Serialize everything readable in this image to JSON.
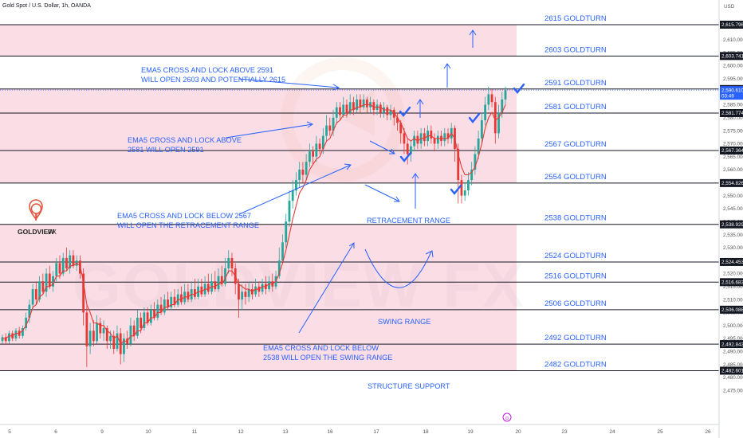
{
  "header": {
    "symbol": "Gold Spot / U.S. Dollar, 1h, OANDA",
    "currency": "USD"
  },
  "logo": {
    "name": "GOLDVIEW",
    "suffix": "FX"
  },
  "watermark": "GOLDVIEW FX",
  "colors": {
    "up": "#26a69a",
    "down": "#e53935",
    "band": "#fbdde6",
    "blue": "#2962ff",
    "ema": "#e53935"
  },
  "chart_data": {
    "type": "candlestick",
    "ylim": [
      2472,
      2622
    ],
    "x_ticks": [
      "5",
      "6",
      "9",
      "10",
      "11",
      "12",
      "13",
      "16",
      "17",
      "18",
      "19",
      "20",
      "23",
      "24",
      "25",
      "26"
    ],
    "y_ticks": [
      "2,610.000",
      "2,605.000",
      "2,600.000",
      "2,595.000",
      "2,585.000",
      "2,580.000",
      "2,575.000",
      "2,570.000",
      "2,565.000",
      "2,560.000",
      "2,555.000",
      "2,550.000",
      "2,545.000",
      "2,540.000",
      "2,535.000",
      "2,530.000",
      "2,525.000",
      "2,520.000",
      "2,515.000",
      "2,510.000",
      "2,505.000",
      "2,500.000",
      "2,495.000",
      "2,490.000",
      "2,485.000",
      "2,480.000",
      "2,475.000"
    ],
    "levels": [
      {
        "value": 2615.796,
        "tag": "2,615.796",
        "label": "2615 GOLDTURN"
      },
      {
        "value": 2603.741,
        "tag": "2,603.741",
        "label": "2603 GOLDTURN"
      },
      {
        "value": 2591.027,
        "tag": "2,591.027",
        "label": "2591 GOLDTURN"
      },
      {
        "value": 2581.774,
        "tag": "2,581.774",
        "label": "2581 GOLDTURN"
      },
      {
        "value": 2567.364,
        "tag": "2,567.364",
        "label": "2567 GOLDTURN"
      },
      {
        "value": 2554.826,
        "tag": "2,554.826",
        "label": "2554 GOLDTURN"
      },
      {
        "value": 2538.929,
        "tag": "2,538.929",
        "label": "2538 GOLDTURN"
      },
      {
        "value": 2524.453,
        "tag": "2,524.453",
        "label": "2524 GOLDTURN"
      },
      {
        "value": 2516.683,
        "tag": "2,516.683",
        "label": "2516 GOLDTURN"
      },
      {
        "value": 2506.088,
        "tag": "2,506.088",
        "label": "2506 GOLDTURN"
      },
      {
        "value": 2492.843,
        "tag": "2,492.843",
        "label": "2492 GOLDTURN"
      },
      {
        "value": 2482.601,
        "tag": "2,482.601",
        "label": "2482 GOLDTURN"
      }
    ],
    "bands": [
      [
        2603.741,
        2615.796
      ],
      [
        2554.826,
        2591.027
      ],
      [
        2482.601,
        2538.929
      ]
    ],
    "current_price": {
      "value": 2590.61,
      "tag": "2,590.610",
      "countdown": "03:49"
    },
    "annotations": [
      {
        "lines": [
          "EMA5 CROSS AND LOCK ABOVE 2591",
          "WILL OPEN 2603 AND POTENTIALLY 2615"
        ]
      },
      {
        "lines": [
          "EMA5 CROSS AND LOCK ABOVE",
          "2581 WILL OPEN 2591"
        ]
      },
      {
        "lines": [
          "EMA5 CROSS AND LOCK BELOW 2567",
          "WILL OPEN THE RETRACEMENT RANGE"
        ]
      },
      {
        "lines": [
          "EMA5 CROSS AND LOCK BELOW",
          "2538 WILL OPEN THE SWING RANGE"
        ]
      }
    ],
    "range_labels": [
      "RETRACEMENT RANGE",
      "SWING RANGE",
      "STRUCTURE SUPPORT"
    ],
    "candles": [
      [
        2494,
        2495.5,
        2496.5,
        2493
      ],
      [
        2495.5,
        2494,
        2497,
        2492.5
      ],
      [
        2494,
        2497,
        2498,
        2493
      ],
      [
        2497,
        2495,
        2498,
        2494
      ],
      [
        2495,
        2498,
        2499,
        2494
      ],
      [
        2498,
        2496,
        2499.5,
        2495
      ],
      [
        2496,
        2499,
        2500,
        2495
      ],
      [
        2499,
        2503,
        2505,
        2498
      ],
      [
        2503,
        2508,
        2510,
        2501
      ],
      [
        2508,
        2514,
        2516,
        2506
      ],
      [
        2514,
        2510,
        2517,
        2508
      ],
      [
        2510,
        2517,
        2519,
        2509
      ],
      [
        2517,
        2513,
        2520,
        2512
      ],
      [
        2513,
        2520,
        2522,
        2511
      ],
      [
        2520,
        2515,
        2523,
        2514
      ],
      [
        2515,
        2519,
        2521,
        2513
      ],
      [
        2519,
        2524,
        2526,
        2517
      ],
      [
        2524,
        2520,
        2527,
        2518
      ],
      [
        2520,
        2526,
        2528,
        2519
      ],
      [
        2526,
        2522,
        2530,
        2521
      ],
      [
        2522,
        2527,
        2529,
        2520
      ],
      [
        2527,
        2523,
        2529,
        2522
      ],
      [
        2523,
        2525,
        2527,
        2521
      ],
      [
        2525,
        2520,
        2527,
        2518
      ],
      [
        2520,
        2505,
        2522,
        2500
      ],
      [
        2505,
        2492,
        2508,
        2484
      ],
      [
        2492,
        2498,
        2501,
        2489
      ],
      [
        2498,
        2494,
        2502,
        2492
      ],
      [
        2494,
        2501,
        2504,
        2493
      ],
      [
        2501,
        2497,
        2503,
        2495
      ],
      [
        2497,
        2499,
        2502,
        2494
      ],
      [
        2499,
        2494,
        2500,
        2491
      ],
      [
        2494,
        2496,
        2498,
        2491
      ],
      [
        2496,
        2491,
        2498,
        2489
      ],
      [
        2491,
        2497,
        2500,
        2490
      ],
      [
        2497,
        2489,
        2499,
        2485
      ],
      [
        2489,
        2495,
        2497,
        2486
      ],
      [
        2495,
        2493,
        2498,
        2491
      ],
      [
        2493,
        2500,
        2503,
        2492
      ],
      [
        2500,
        2496,
        2502,
        2494
      ],
      [
        2496,
        2503,
        2506,
        2495
      ],
      [
        2503,
        2499,
        2505,
        2497
      ],
      [
        2499,
        2505,
        2507,
        2498
      ],
      [
        2505,
        2501,
        2507,
        2500
      ],
      [
        2501,
        2506,
        2508,
        2500
      ],
      [
        2506,
        2503,
        2509,
        2502
      ],
      [
        2503,
        2508,
        2510,
        2502
      ],
      [
        2508,
        2505,
        2511,
        2504
      ],
      [
        2505,
        2510,
        2512,
        2504
      ],
      [
        2510,
        2507,
        2513,
        2506
      ],
      [
        2507,
        2511,
        2513,
        2506
      ],
      [
        2511,
        2508,
        2514,
        2507
      ],
      [
        2508,
        2512,
        2514,
        2507
      ],
      [
        2512,
        2509,
        2515,
        2508
      ],
      [
        2509,
        2513,
        2516,
        2508
      ],
      [
        2513,
        2510,
        2516,
        2509
      ],
      [
        2510,
        2514,
        2517,
        2509
      ],
      [
        2514,
        2511,
        2518,
        2510
      ],
      [
        2511,
        2515,
        2518,
        2510
      ],
      [
        2515,
        2512,
        2518,
        2511
      ],
      [
        2512,
        2516,
        2519,
        2511
      ],
      [
        2516,
        2513,
        2520,
        2512
      ],
      [
        2513,
        2517,
        2520,
        2512
      ],
      [
        2517,
        2514,
        2521,
        2513
      ],
      [
        2514,
        2519,
        2522,
        2513
      ],
      [
        2519,
        2516,
        2523,
        2515
      ],
      [
        2516,
        2522,
        2526,
        2515
      ],
      [
        2522,
        2526,
        2529,
        2520
      ],
      [
        2526,
        2522,
        2528,
        2519
      ],
      [
        2522,
        2516,
        2524,
        2512
      ],
      [
        2516,
        2510,
        2518,
        2503
      ],
      [
        2510,
        2513,
        2516,
        2506
      ],
      [
        2513,
        2511,
        2516,
        2508
      ],
      [
        2511,
        2514,
        2517,
        2509
      ],
      [
        2514,
        2512,
        2516,
        2510
      ],
      [
        2512,
        2515,
        2518,
        2511
      ],
      [
        2515,
        2513,
        2517,
        2511
      ],
      [
        2513,
        2516,
        2518,
        2512
      ],
      [
        2516,
        2514,
        2519,
        2512
      ],
      [
        2514,
        2517,
        2519,
        2513
      ],
      [
        2517,
        2515,
        2520,
        2513
      ],
      [
        2515,
        2519,
        2521,
        2514
      ],
      [
        2519,
        2525,
        2530,
        2518
      ],
      [
        2525,
        2532,
        2535,
        2524
      ],
      [
        2532,
        2540,
        2543,
        2530
      ],
      [
        2540,
        2548,
        2552,
        2538
      ],
      [
        2548,
        2552,
        2556,
        2545
      ],
      [
        2552,
        2556,
        2559,
        2550
      ],
      [
        2556,
        2560,
        2563,
        2553
      ],
      [
        2560,
        2558,
        2563,
        2555
      ],
      [
        2558,
        2563,
        2566,
        2556
      ],
      [
        2563,
        2567,
        2570,
        2561
      ],
      [
        2567,
        2565,
        2569,
        2562
      ],
      [
        2565,
        2570,
        2573,
        2563
      ],
      [
        2570,
        2568,
        2572,
        2566
      ],
      [
        2568,
        2573,
        2576,
        2566
      ],
      [
        2573,
        2577,
        2581,
        2571
      ],
      [
        2577,
        2575,
        2580,
        2573
      ],
      [
        2575,
        2580,
        2583,
        2573
      ],
      [
        2580,
        2584,
        2586,
        2578
      ],
      [
        2584,
        2581,
        2586,
        2579
      ],
      [
        2581,
        2585,
        2588,
        2580
      ],
      [
        2585,
        2582,
        2587,
        2580
      ],
      [
        2582,
        2586,
        2589,
        2581
      ],
      [
        2586,
        2583,
        2588,
        2581
      ],
      [
        2583,
        2587,
        2589,
        2582
      ],
      [
        2587,
        2584,
        2589,
        2582
      ],
      [
        2584,
        2587,
        2589,
        2583
      ],
      [
        2587,
        2584,
        2588,
        2582
      ],
      [
        2584,
        2586,
        2588,
        2582
      ],
      [
        2586,
        2583,
        2587,
        2581
      ],
      [
        2583,
        2585,
        2587,
        2581
      ],
      [
        2585,
        2582,
        2586,
        2580
      ],
      [
        2582,
        2584,
        2586,
        2580
      ],
      [
        2584,
        2581,
        2585,
        2579
      ],
      [
        2581,
        2583,
        2585,
        2579
      ],
      [
        2583,
        2580,
        2584,
        2577
      ],
      [
        2580,
        2578,
        2582,
        2575
      ],
      [
        2578,
        2574,
        2579,
        2570
      ],
      [
        2574,
        2570,
        2576,
        2566
      ],
      [
        2570,
        2566,
        2572,
        2562
      ],
      [
        2566,
        2569,
        2571,
        2563
      ],
      [
        2569,
        2573,
        2575,
        2567
      ],
      [
        2573,
        2570,
        2575,
        2568
      ],
      [
        2570,
        2574,
        2576,
        2568
      ],
      [
        2574,
        2571,
        2576,
        2569
      ],
      [
        2571,
        2575,
        2577,
        2569
      ],
      [
        2575,
        2572,
        2577,
        2570
      ],
      [
        2572,
        2570,
        2574,
        2567
      ],
      [
        2570,
        2573,
        2575,
        2568
      ],
      [
        2573,
        2571,
        2575,
        2569
      ],
      [
        2571,
        2574,
        2576,
        2569
      ],
      [
        2574,
        2572,
        2576,
        2570
      ],
      [
        2572,
        2576,
        2578,
        2570
      ],
      [
        2576,
        2568,
        2577,
        2563
      ],
      [
        2568,
        2556,
        2570,
        2547
      ],
      [
        2556,
        2550,
        2558,
        2547
      ],
      [
        2550,
        2552,
        2555,
        2548
      ],
      [
        2552,
        2556,
        2559,
        2550
      ],
      [
        2556,
        2560,
        2563,
        2554
      ],
      [
        2560,
        2566,
        2569,
        2558
      ],
      [
        2566,
        2572,
        2575,
        2564
      ],
      [
        2572,
        2579,
        2582,
        2570
      ],
      [
        2579,
        2585,
        2588,
        2577
      ],
      [
        2585,
        2589,
        2592,
        2583
      ],
      [
        2589,
        2586,
        2591,
        2584
      ],
      [
        2586,
        2574,
        2588,
        2570
      ],
      [
        2574,
        2582,
        2585,
        2572
      ],
      [
        2582,
        2587,
        2590,
        2580
      ],
      [
        2587,
        2590.6,
        2592,
        2585
      ]
    ],
    "ema5": [
      2495,
      2495,
      2496,
      2496,
      2497,
      2497,
      2498,
      2500,
      2503,
      2507,
      2508,
      2511,
      2512,
      2515,
      2515,
      2516,
      2519,
      2519,
      2521,
      2521,
      2523,
      2523,
      2524,
      2523,
      2517,
      2508,
      2505,
      2501,
      2501,
      2500,
      2500,
      2498,
      2497,
      2495,
      2496,
      2493,
      2494,
      2494,
      2496,
      2496,
      2498,
      2498,
      2501,
      2501,
      2503,
      2503,
      2505,
      2505,
      2507,
      2507,
      2508,
      2508,
      2510,
      2510,
      2511,
      2511,
      2512,
      2512,
      2513,
      2513,
      2514,
      2514,
      2515,
      2515,
      2516,
      2516,
      2518,
      2521,
      2521,
      2519,
      2516,
      2515,
      2514,
      2514,
      2513,
      2514,
      2514,
      2515,
      2515,
      2516,
      2516,
      2517,
      2520,
      2524,
      2529,
      2535,
      2541,
      2546,
      2551,
      2553,
      2556,
      2560,
      2562,
      2564,
      2565,
      2568,
      2571,
      2572,
      2575,
      2578,
      2579,
      2581,
      2581,
      2583,
      2583,
      2584,
      2584,
      2585,
      2585,
      2585,
      2584,
      2584,
      2584,
      2583,
      2583,
      2583,
      2582,
      2580,
      2578,
      2575,
      2572,
      2571,
      2572,
      2571,
      2572,
      2572,
      2573,
      2573,
      2572,
      2572,
      2572,
      2572,
      2572,
      2574,
      2572,
      2566,
      2561,
      2558,
      2558,
      2559,
      2561,
      2565,
      2570,
      2576,
      2580,
      2582,
      2579,
      2580,
      2582,
      2585
    ]
  }
}
